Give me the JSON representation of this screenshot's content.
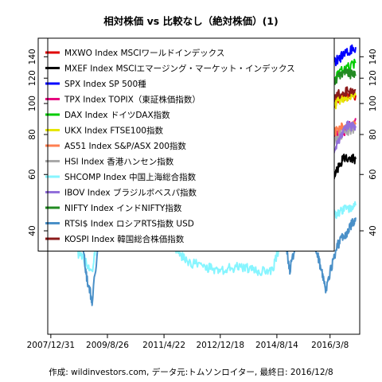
{
  "chart_data": {
    "type": "line",
    "title": "相対株価 vs 比較なし（絶対株価）(1)",
    "caption": "作成: wildinvestors.com, データ元:トムソンロイター, 最終日: 2016/12/8",
    "y_scale": "log",
    "ylim": [
      19,
      160
    ],
    "yticks": [
      40,
      60,
      80,
      100,
      120,
      140
    ],
    "x_ticks": [
      "2007/12/31",
      "2009/8/26",
      "2011/4/22",
      "2012/12/18",
      "2014/8/14",
      "2016/3/8"
    ],
    "x_tick_years": [
      2007.99,
      2009.65,
      2011.31,
      2012.96,
      2014.62,
      2016.18
    ],
    "xlim": [
      2007.9,
      2017.05
    ],
    "legend_position": "top-left",
    "grid": false,
    "series": [
      {
        "name": "MXWO Index MSCIワールドインデックス",
        "color": "#e00000",
        "width": 2,
        "x": [
          2008.0,
          2008.5,
          2008.8,
          2009.2,
          2009.6,
          2010.0,
          2010.5,
          2011.0,
          2011.3,
          2011.7,
          2012.0,
          2012.5,
          2013.0,
          2013.5,
          2014.0,
          2014.5,
          2015.0,
          2015.5,
          2015.7,
          2016.0,
          2016.2,
          2016.5,
          2016.93
        ],
        "y": [
          100,
          92,
          70,
          48,
          65,
          80,
          76,
          88,
          92,
          76,
          82,
          84,
          90,
          97,
          104,
          110,
          108,
          110,
          100,
          96,
          98,
          104,
          106
        ]
      },
      {
        "name": "MXEF Index MSCIエマージング・マーケット・インデックス",
        "color": "#000000",
        "width": 2,
        "x": [
          2008.0,
          2008.4,
          2008.8,
          2009.2,
          2009.7,
          2010.0,
          2010.6,
          2011.0,
          2011.4,
          2011.8,
          2012.3,
          2012.8,
          2013.3,
          2013.8,
          2014.3,
          2014.8,
          2015.2,
          2015.6,
          2016.0,
          2016.3,
          2016.6,
          2016.93
        ],
        "y": [
          100,
          90,
          62,
          48,
          70,
          82,
          80,
          88,
          84,
          68,
          74,
          76,
          72,
          74,
          76,
          80,
          74,
          64,
          57,
          60,
          68,
          67
        ]
      },
      {
        "name": "SPX Index SP 500種",
        "color": "#0000ff",
        "width": 2,
        "x": [
          2008.0,
          2008.5,
          2008.9,
          2009.2,
          2009.6,
          2010.0,
          2010.5,
          2011.0,
          2011.3,
          2011.7,
          2012.0,
          2012.5,
          2013.0,
          2013.5,
          2014.0,
          2014.5,
          2015.0,
          2015.5,
          2015.7,
          2016.0,
          2016.2,
          2016.5,
          2016.93
        ],
        "y": [
          100,
          88,
          66,
          52,
          68,
          78,
          76,
          86,
          92,
          82,
          90,
          94,
          102,
          112,
          124,
          132,
          136,
          140,
          130,
          128,
          132,
          140,
          150
        ]
      },
      {
        "name": "TPX Index TOPIX（東証株価指数）",
        "color": "#e6007e",
        "width": 2,
        "x": [
          2008.0,
          2008.5,
          2008.8,
          2009.2,
          2009.6,
          2010.0,
          2010.5,
          2011.0,
          2011.3,
          2011.8,
          2012.2,
          2012.8,
          2013.0,
          2013.4,
          2013.8,
          2014.3,
          2014.8,
          2015.3,
          2015.5,
          2016.0,
          2016.5,
          2016.93
        ],
        "y": [
          100,
          88,
          62,
          50,
          56,
          58,
          54,
          58,
          56,
          50,
          52,
          48,
          56,
          78,
          78,
          76,
          86,
          96,
          100,
          86,
          78,
          90
        ]
      },
      {
        "name": "DAX Index ドイツDAX指数",
        "color": "#00cc00",
        "width": 2,
        "x": [
          2008.0,
          2008.5,
          2008.9,
          2009.2,
          2009.7,
          2010.0,
          2010.5,
          2011.0,
          2011.4,
          2011.7,
          2012.2,
          2012.8,
          2013.3,
          2013.8,
          2014.3,
          2014.7,
          2015.0,
          2015.3,
          2015.7,
          2016.1,
          2016.5,
          2016.93
        ],
        "y": [
          100,
          84,
          64,
          50,
          66,
          74,
          76,
          86,
          92,
          70,
          84,
          94,
          100,
          116,
          124,
          116,
          126,
          150,
          124,
          112,
          126,
          134
        ]
      },
      {
        "name": "UKX Index FTSE100指数",
        "color": "#e6e600",
        "width": 2,
        "x": [
          2008.0,
          2008.5,
          2008.9,
          2009.2,
          2009.7,
          2010.0,
          2010.5,
          2011.0,
          2011.4,
          2011.7,
          2012.2,
          2012.8,
          2013.3,
          2013.8,
          2014.3,
          2014.8,
          2015.3,
          2015.7,
          2016.1,
          2016.5,
          2016.93
        ],
        "y": [
          100,
          90,
          72,
          62,
          78,
          86,
          82,
          92,
          94,
          82,
          88,
          90,
          100,
          102,
          104,
          104,
          110,
          98,
          92,
          104,
          106
        ]
      },
      {
        "name": "AS51 Index S&P/ASX 200指数",
        "color": "#ff7f50",
        "width": 2,
        "x": [
          2008.0,
          2008.5,
          2008.9,
          2009.2,
          2009.7,
          2010.0,
          2010.5,
          2011.0,
          2011.4,
          2011.7,
          2012.2,
          2012.8,
          2013.3,
          2013.8,
          2014.3,
          2014.8,
          2015.3,
          2015.7,
          2016.1,
          2016.5,
          2016.93
        ],
        "y": [
          100,
          82,
          62,
          54,
          68,
          74,
          68,
          74,
          74,
          64,
          68,
          70,
          80,
          84,
          86,
          86,
          90,
          80,
          78,
          84,
          86
        ]
      },
      {
        "name": "HSI Index 香港ハンセン指数",
        "color": "#a9a9a9",
        "width": 2,
        "x": [
          2008.0,
          2008.4,
          2008.8,
          2009.2,
          2009.7,
          2010.0,
          2010.6,
          2011.0,
          2011.4,
          2011.8,
          2012.3,
          2012.9,
          2013.4,
          2013.9,
          2014.4,
          2014.9,
          2015.3,
          2015.7,
          2016.1,
          2016.5,
          2016.93
        ],
        "y": [
          100,
          88,
          56,
          48,
          78,
          80,
          78,
          86,
          84,
          68,
          74,
          80,
          78,
          82,
          80,
          86,
          100,
          78,
          70,
          80,
          84
        ]
      },
      {
        "name": "SHCOMP Index 中国上海総合指数",
        "color": "#87f5ff",
        "width": 2,
        "x": [
          2008.0,
          2008.4,
          2008.8,
          2009.2,
          2009.6,
          2010.0,
          2010.5,
          2011.0,
          2011.5,
          2012.0,
          2012.5,
          2012.9,
          2013.5,
          2014.0,
          2014.5,
          2014.9,
          2015.3,
          2015.45,
          2015.7,
          2016.1,
          2016.5,
          2016.93
        ],
        "y": [
          100,
          60,
          34,
          30,
          50,
          46,
          36,
          40,
          36,
          32,
          31,
          30,
          31,
          30,
          30,
          42,
          64,
          76,
          50,
          44,
          46,
          48
        ]
      },
      {
        "name": "IBOV Index ブラジルボベスパ指数",
        "color": "#9370db",
        "width": 2,
        "x": [
          2008.0,
          2008.4,
          2008.9,
          2009.2,
          2009.7,
          2010.0,
          2010.6,
          2011.0,
          2011.5,
          2012.0,
          2012.5,
          2013.0,
          2013.5,
          2014.0,
          2014.5,
          2015.0,
          2015.5,
          2016.0,
          2016.4,
          2016.7,
          2016.93
        ],
        "y": [
          100,
          106,
          60,
          62,
          88,
          94,
          88,
          92,
          80,
          80,
          74,
          80,
          66,
          70,
          80,
          72,
          74,
          60,
          76,
          86,
          84
        ]
      },
      {
        "name": "NIFTY Index インドNIFTY指数",
        "color": "#228b22",
        "width": 2,
        "x": [
          2008.0,
          2008.4,
          2008.9,
          2009.2,
          2009.7,
          2010.0,
          2010.6,
          2011.0,
          2011.5,
          2011.9,
          2012.5,
          2013.0,
          2013.6,
          2014.0,
          2014.4,
          2014.9,
          2015.2,
          2015.7,
          2016.1,
          2016.6,
          2016.93
        ],
        "y": [
          100,
          70,
          46,
          46,
          76,
          84,
          92,
          98,
          84,
          74,
          80,
          88,
          82,
          90,
          110,
          124,
          134,
          122,
          112,
          126,
          122
        ]
      },
      {
        "name": "RTSI$ Index ロシアRTS指数 USD",
        "color": "#4a90c8",
        "width": 2,
        "x": [
          2008.0,
          2008.4,
          2008.7,
          2009.0,
          2009.2,
          2009.7,
          2010.0,
          2010.6,
          2011.0,
          2011.3,
          2011.8,
          2012.3,
          2012.9,
          2013.4,
          2013.9,
          2014.4,
          2014.8,
          2015.0,
          2015.4,
          2015.8,
          2016.05,
          2016.4,
          2016.7,
          2016.93
        ],
        "y": [
          100,
          106,
          60,
          30,
          24,
          56,
          62,
          64,
          76,
          90,
          64,
          68,
          64,
          58,
          60,
          58,
          40,
          30,
          45,
          34,
          26,
          36,
          40,
          44
        ]
      },
      {
        "name": "KOSPI Index 韓国総合株価指数",
        "color": "#8b1a1a",
        "width": 2,
        "x": [
          2008.0,
          2008.4,
          2008.9,
          2009.2,
          2009.7,
          2010.0,
          2010.6,
          2011.0,
          2011.4,
          2011.7,
          2012.2,
          2012.8,
          2013.3,
          2013.8,
          2014.3,
          2014.8,
          2015.3,
          2015.7,
          2016.1,
          2016.5,
          2016.93
        ],
        "y": [
          100,
          94,
          58,
          60,
          86,
          92,
          94,
          110,
          114,
          96,
          104,
          106,
          102,
          106,
          104,
          108,
          112,
          104,
          100,
          108,
          110
        ]
      }
    ]
  }
}
